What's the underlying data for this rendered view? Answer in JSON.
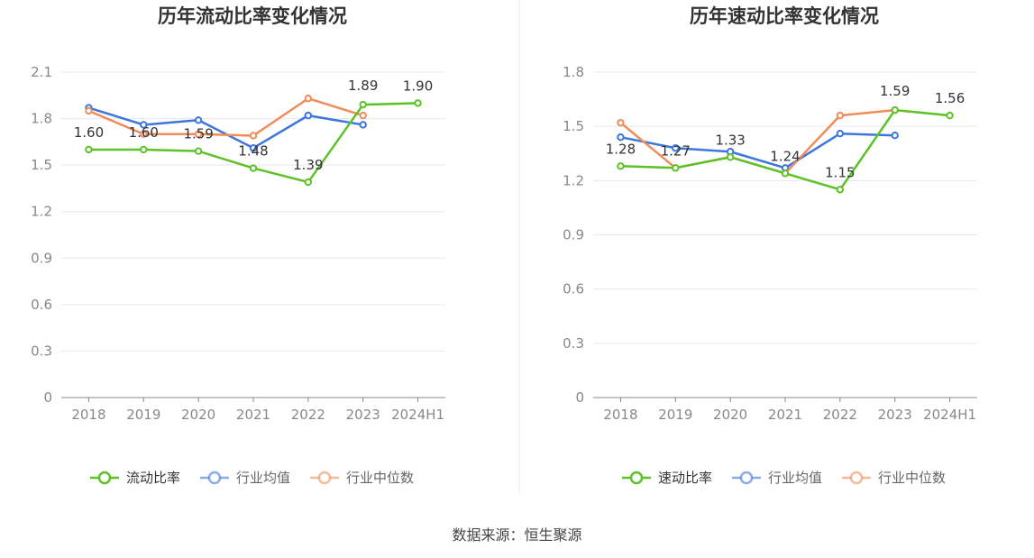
{
  "chart_data": [
    {
      "type": "line",
      "title": "历年流动比率变化情况",
      "categories": [
        "2018",
        "2019",
        "2020",
        "2021",
        "2022",
        "2023",
        "2024H1"
      ],
      "ylim": [
        0,
        2.1
      ],
      "yticks": [
        0,
        0.3,
        0.6,
        0.9,
        1.2,
        1.5,
        1.8,
        2.1
      ],
      "ytick_labels": [
        "0",
        "0.3",
        "0.6",
        "0.9",
        "1.2",
        "1.5",
        "1.8",
        "2.1"
      ],
      "grid": true,
      "legend_position": "bottom",
      "series": [
        {
          "name": "流动比率",
          "color": "#5cc227",
          "values": [
            1.6,
            1.6,
            1.59,
            1.48,
            1.39,
            1.89,
            1.9
          ],
          "labels": [
            "1.60",
            "1.60",
            "1.59",
            "1.48",
            "1.39",
            "1.89",
            "1.90"
          ]
        },
        {
          "name": "行业均值",
          "color": "#3d76dd",
          "values": [
            1.87,
            1.76,
            1.79,
            1.61,
            1.82,
            1.76,
            null
          ]
        },
        {
          "name": "行业中位数",
          "color": "#f08c5a",
          "values": [
            1.85,
            1.7,
            1.7,
            1.69,
            1.93,
            1.82,
            null
          ]
        }
      ]
    },
    {
      "type": "line",
      "title": "历年速动比率变化情况",
      "categories": [
        "2018",
        "2019",
        "2020",
        "2021",
        "2022",
        "2023",
        "2024H1"
      ],
      "ylim": [
        0,
        1.8
      ],
      "yticks": [
        0,
        0.3,
        0.6,
        0.9,
        1.2,
        1.5,
        1.8
      ],
      "ytick_labels": [
        "0",
        "0.3",
        "0.6",
        "0.9",
        "1.2",
        "1.5",
        "1.8"
      ],
      "grid": true,
      "legend_position": "bottom",
      "series": [
        {
          "name": "速动比率",
          "color": "#5cc227",
          "values": [
            1.28,
            1.27,
            1.33,
            1.24,
            1.15,
            1.59,
            1.56
          ],
          "labels": [
            "1.28",
            "1.27",
            "1.33",
            "1.24",
            "1.15",
            "1.59",
            "1.56"
          ]
        },
        {
          "name": "行业均值",
          "color": "#3d76dd",
          "values": [
            1.44,
            1.38,
            1.36,
            1.27,
            1.46,
            1.45,
            null
          ]
        },
        {
          "name": "行业中位数",
          "color": "#f08c5a",
          "values": [
            1.52,
            1.27,
            1.33,
            1.24,
            1.56,
            1.59,
            null
          ]
        }
      ]
    }
  ],
  "source": "数据来源：恒生聚源"
}
